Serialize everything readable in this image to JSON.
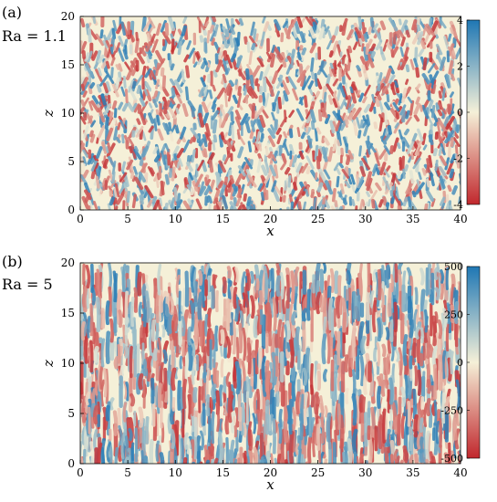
{
  "panels": [
    {
      "letter": "(a)",
      "ra_label": "Ra = 1.1",
      "chart_data": {
        "type": "heatmap",
        "xlabel": "x",
        "ylabel": "z",
        "xlim": [
          0,
          40
        ],
        "ylim": [
          0,
          20
        ],
        "xticks": [
          0,
          5,
          10,
          15,
          20,
          25,
          30,
          35,
          40
        ],
        "yticks": [
          0,
          5,
          10,
          15,
          20
        ],
        "colorbar": {
          "ticks": [
            4,
            2,
            0,
            -2,
            -4
          ],
          "range": [
            -4,
            4
          ]
        },
        "colormap": {
          "high": "#1f77b4",
          "mid": "#f5f0d8",
          "low": "#c1272d"
        }
      }
    },
    {
      "letter": "(b)",
      "ra_label": "Ra = 5",
      "chart_data": {
        "type": "heatmap",
        "xlabel": "x",
        "ylabel": "z",
        "xlim": [
          0,
          40
        ],
        "ylim": [
          0,
          20
        ],
        "xticks": [
          0,
          5,
          10,
          15,
          20,
          25,
          30,
          35,
          40
        ],
        "yticks": [
          0,
          5,
          10,
          15,
          20
        ],
        "colorbar": {
          "ticks": [
            500,
            250,
            0,
            -250,
            -500
          ],
          "range": [
            -500,
            500
          ]
        },
        "colormap": {
          "high": "#1f77b4",
          "mid": "#f5f0d8",
          "low": "#c1272d"
        }
      }
    }
  ]
}
